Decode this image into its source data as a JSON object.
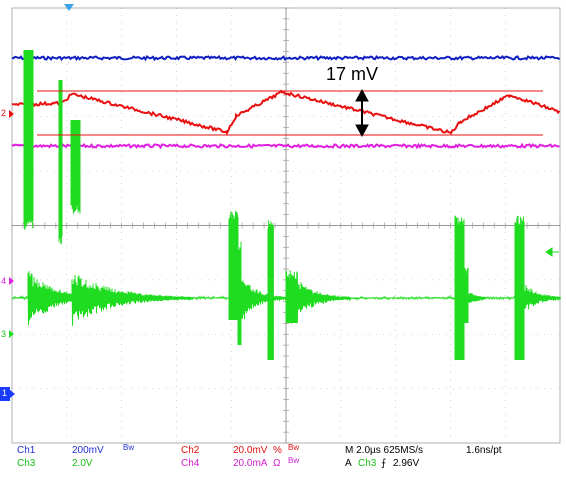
{
  "annotation": {
    "measurement_label": "17 mV"
  },
  "markers": {
    "trig_left_ch2": "2",
    "ch4_marker": "4",
    "ch3_marker": "3",
    "ch1_marker": "1"
  },
  "status": {
    "ch1": {
      "name": "Ch1",
      "scale": "200mV",
      "bw": "Bw"
    },
    "ch3": {
      "name": "Ch3",
      "scale": "2.0V"
    },
    "ch2": {
      "name": "Ch2",
      "scale": "20.0mV",
      "sym": "%",
      "bw": "Bw"
    },
    "ch4": {
      "name": "Ch4",
      "scale": "20.0mA",
      "sym": "Ω",
      "bw": "Bw"
    },
    "timebase": "M 2.0µs 625MS/s",
    "resolution": "1.6ns/pt",
    "trigger_prefix": "A",
    "trigger_source": "Ch3",
    "trigger_slope": "⨍",
    "trigger_level": "2.96V"
  },
  "colors": {
    "ch1": "#1020c0",
    "ch2": "#e81010",
    "ch3": "#20dc20",
    "ch4": "#e020e0",
    "grid": "#b0b0b0",
    "status_blue": "#2030d0",
    "status_red": "#e01010",
    "status_green": "#18c018",
    "status_magenta": "#d020d0"
  }
}
